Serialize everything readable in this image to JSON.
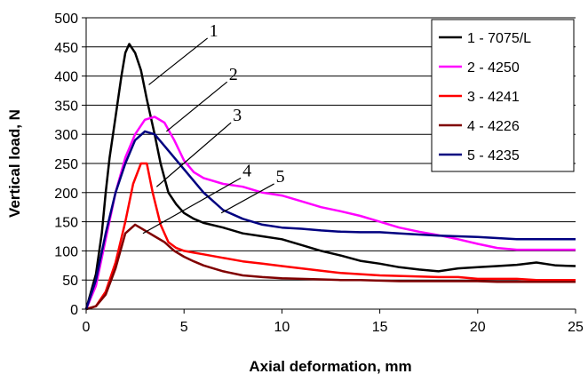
{
  "chart_data": {
    "type": "line",
    "title": "",
    "xlabel": "Axial deformation, mm",
    "ylabel": "Vertical load, N",
    "xlim": [
      0,
      25
    ],
    "ylim": [
      0,
      500
    ],
    "xticks": [
      0,
      5,
      10,
      15,
      20,
      25
    ],
    "yticks": [
      0,
      50,
      100,
      150,
      200,
      250,
      300,
      350,
      400,
      450,
      500
    ],
    "grid": "horizontal",
    "legend_position": "top-right",
    "series": [
      {
        "name": "1 - 7075/L",
        "label": "1",
        "color": "#000000",
        "x": [
          0,
          0.5,
          0.8,
          1.0,
          1.2,
          1.5,
          1.8,
          2.0,
          2.2,
          2.5,
          2.8,
          3.1,
          3.5,
          3.8,
          4.2,
          4.6,
          5,
          5.5,
          6,
          7,
          8,
          9,
          10,
          11,
          12,
          13,
          14,
          15,
          16,
          17,
          18,
          19,
          20,
          21,
          22,
          23,
          24,
          25
        ],
        "y": [
          0,
          60,
          130,
          200,
          260,
          330,
          400,
          440,
          455,
          440,
          410,
          360,
          300,
          250,
          200,
          180,
          165,
          155,
          148,
          140,
          130,
          125,
          120,
          110,
          100,
          92,
          83,
          78,
          72,
          68,
          65,
          70,
          72,
          74,
          76,
          80,
          75,
          74
        ]
      },
      {
        "name": "2 - 4250",
        "label": "2",
        "color": "#ff00ff",
        "x": [
          0,
          0.5,
          1.0,
          1.5,
          2.0,
          2.5,
          3.0,
          3.5,
          4.0,
          4.5,
          5,
          5.5,
          6,
          7,
          8,
          9,
          10,
          11,
          12,
          13,
          14,
          15,
          16,
          17,
          18,
          19,
          20,
          21,
          22,
          23,
          24,
          25
        ],
        "y": [
          0,
          40,
          120,
          200,
          260,
          300,
          325,
          330,
          320,
          290,
          255,
          235,
          225,
          215,
          210,
          200,
          195,
          185,
          175,
          168,
          160,
          150,
          140,
          133,
          127,
          120,
          112,
          105,
          102,
          102,
          102,
          102
        ]
      },
      {
        "name": "3 - 4241",
        "label": "3",
        "color": "#ff0000",
        "x": [
          0,
          0.5,
          1.0,
          1.5,
          2.0,
          2.4,
          2.8,
          3.1,
          3.4,
          3.8,
          4.2,
          4.6,
          5,
          5.5,
          6,
          7,
          8,
          9,
          10,
          11,
          12,
          13,
          14,
          15,
          16,
          17,
          18,
          19,
          20,
          21,
          22,
          23,
          24,
          25
        ],
        "y": [
          0,
          5,
          30,
          80,
          150,
          215,
          250,
          250,
          200,
          145,
          115,
          105,
          100,
          97,
          94,
          88,
          82,
          78,
          74,
          70,
          66,
          62,
          60,
          58,
          57,
          56,
          55,
          55,
          52,
          52,
          52,
          50,
          50,
          50
        ]
      },
      {
        "name": "4 - 4226",
        "label": "4",
        "color": "#800000",
        "x": [
          0,
          0.5,
          1.0,
          1.5,
          2.0,
          2.5,
          3.0,
          3.5,
          4.0,
          4.5,
          5,
          5.5,
          6,
          7,
          8,
          9,
          10,
          11,
          12,
          13,
          14,
          15,
          16,
          17,
          18,
          19,
          20,
          21,
          22,
          23,
          24,
          25
        ],
        "y": [
          0,
          5,
          25,
          70,
          130,
          145,
          135,
          125,
          115,
          100,
          90,
          82,
          75,
          65,
          58,
          55,
          53,
          52,
          51,
          50,
          50,
          49,
          48,
          48,
          48,
          48,
          48,
          47,
          47,
          47,
          47,
          47
        ]
      },
      {
        "name": "5 - 4235",
        "label": "5",
        "color": "#000080",
        "x": [
          0,
          0.5,
          1.0,
          1.5,
          2.0,
          2.5,
          3.0,
          3.5,
          4.0,
          4.5,
          5,
          5.5,
          6,
          7,
          8,
          9,
          10,
          11,
          12,
          13,
          14,
          15,
          16,
          17,
          18,
          19,
          20,
          21,
          22,
          23,
          24,
          25
        ],
        "y": [
          0,
          50,
          130,
          200,
          250,
          290,
          305,
          300,
          280,
          260,
          240,
          220,
          200,
          170,
          155,
          145,
          140,
          138,
          135,
          133,
          132,
          132,
          130,
          128,
          126,
          125,
          124,
          122,
          120,
          120,
          120,
          120
        ]
      }
    ]
  }
}
